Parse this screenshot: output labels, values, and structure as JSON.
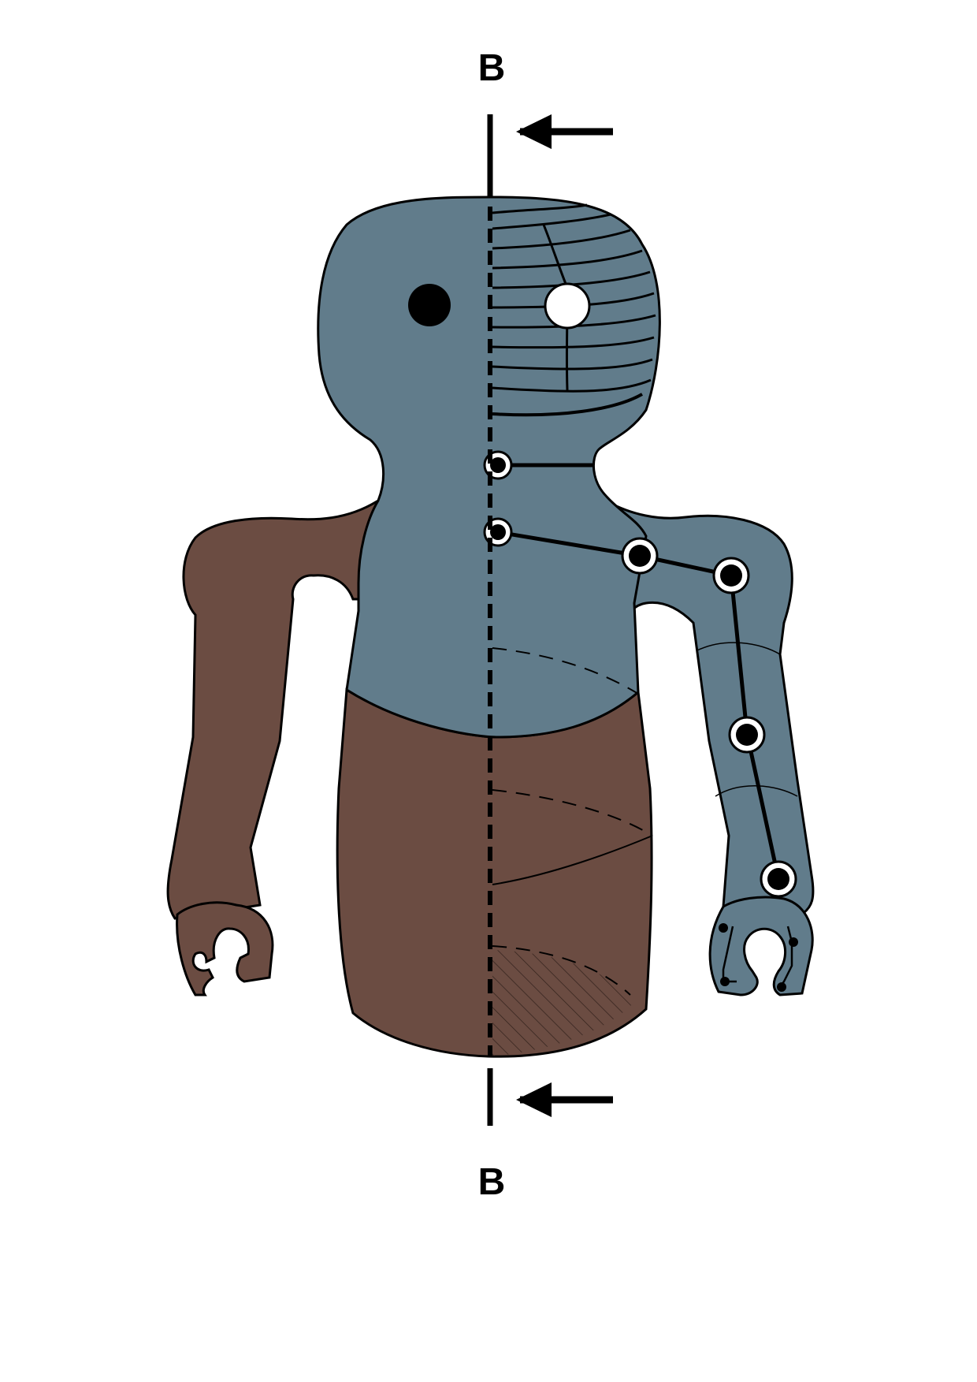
{
  "section": {
    "label_top": "B",
    "label_bottom": "B"
  },
  "colors": {
    "upper_body": "#617c8b",
    "lower_body": "#6b4c42",
    "outline": "#000000",
    "background": "#ffffff"
  },
  "icons": {
    "section_arrow": "arrow-left-icon",
    "joint": "joint-circle-icon",
    "eye": "eye-icon"
  }
}
